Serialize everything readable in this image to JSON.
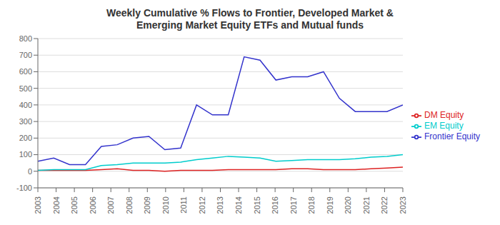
{
  "chart_data": {
    "type": "line",
    "title": "Weekly Cumulative % Flows to Frontier, Developed Market &\nEmerging Market Equity ETFs and Mutual funds",
    "x": [
      2003,
      2003.8695652173913,
      2004.7391304347825,
      2005.6086956521738,
      2006.4782608695652,
      2007.3478260869565,
      2008.2173913043478,
      2009.0869565217392,
      2009.9565217391305,
      2010.8260869565217,
      2011.695652173913,
      2012.5652173913043,
      2013.4347826086957,
      2014.304347826087,
      2015.1739130434783,
      2016.0434782608695,
      2016.9130434782608,
      2017.7826086956522,
      2018.6521739130435,
      2019.5217391304348,
      2020.391304347826,
      2021.2608695652175,
      2022.1304347826087,
      2023
    ],
    "xlim": [
      2003,
      2023
    ],
    "xticks": [
      2003,
      2004,
      2005,
      2006,
      2007,
      2008,
      2009,
      2010,
      2011,
      2012,
      2013,
      2014,
      2015,
      2016,
      2017,
      2018,
      2019,
      2020,
      2021,
      2022,
      2023
    ],
    "ylim": [
      -100,
      800
    ],
    "yticks": [
      -100,
      0,
      100,
      200,
      300,
      400,
      500,
      600,
      700,
      800
    ],
    "grid": true,
    "legend": "right",
    "series": [
      {
        "name": "Frontier Equity",
        "color": "#3333cc",
        "values": [
          60,
          80,
          40,
          40,
          150,
          160,
          200,
          210,
          130,
          140,
          400,
          340,
          340,
          690,
          670,
          550,
          570,
          570,
          600,
          440,
          360,
          360,
          360,
          400
        ]
      },
      {
        "name": "DM Equity",
        "color": "#dd2222",
        "values": [
          5,
          5,
          5,
          5,
          10,
          15,
          5,
          5,
          0,
          5,
          5,
          5,
          10,
          10,
          10,
          10,
          15,
          15,
          10,
          10,
          10,
          15,
          20,
          25
        ]
      },
      {
        "name": "EM Equity",
        "color": "#00cccc",
        "values": [
          5,
          10,
          10,
          10,
          35,
          40,
          50,
          50,
          50,
          55,
          70,
          80,
          90,
          85,
          80,
          60,
          65,
          70,
          70,
          70,
          75,
          85,
          90,
          100
        ]
      }
    ]
  }
}
